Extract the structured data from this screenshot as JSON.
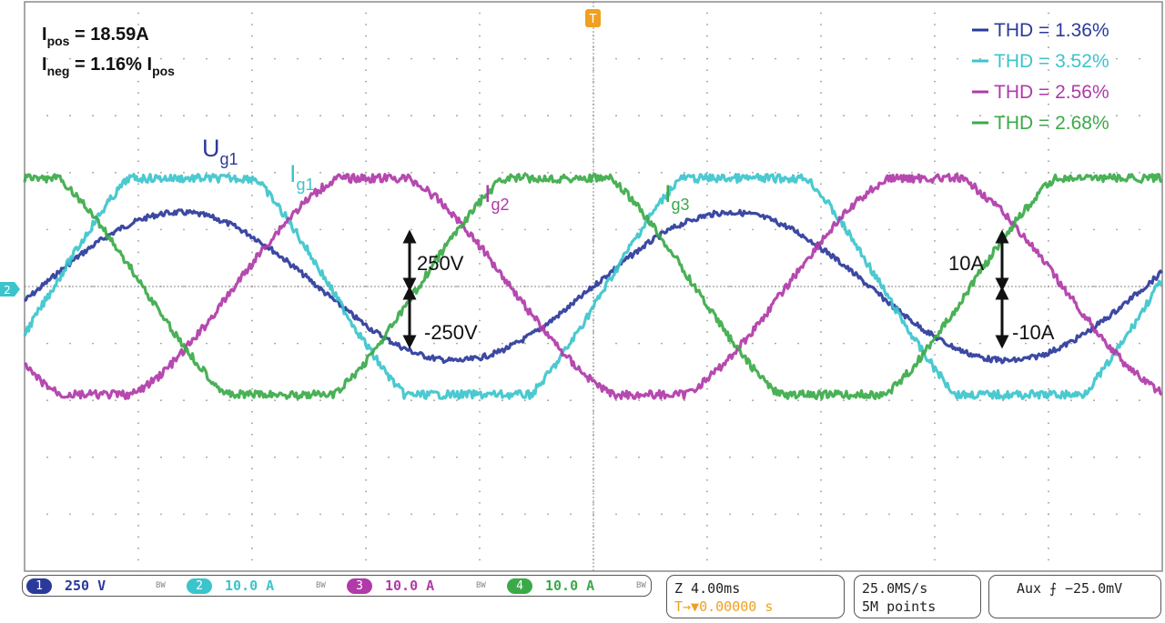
{
  "annotations": {
    "ipos_main": "I",
    "ipos_sub": "pos",
    "ipos_val": " = 18.59A",
    "ineg_main": "I",
    "ineg_sub": "neg",
    "ineg_val": " = 1.16% I",
    "ineg_sub2": "pos",
    "ug1_main": "U",
    "ug1_sub": "g1",
    "ig1_main": "I",
    "ig1_sub": "g1",
    "ig2_main": "I",
    "ig2_sub": "g2",
    "ig3_main": "I",
    "ig3_sub": "g3",
    "v_pos": "250V",
    "v_neg": "-250V",
    "a_pos": "10A",
    "a_neg": "-10A"
  },
  "legend": [
    {
      "label": "THD = 1.36%",
      "color": "#2b3a9a"
    },
    {
      "label": "THD = 3.52%",
      "color": "#3cc4cc"
    },
    {
      "label": "THD = 2.56%",
      "color": "#b03aa8"
    },
    {
      "label": "THD = 2.68%",
      "color": "#3aaa48"
    }
  ],
  "trigger_marker": "T",
  "ground_marker": "2",
  "status": {
    "channels": [
      {
        "num": "1",
        "value": "250 V",
        "color": "#2b3a9a",
        "bw": "BW"
      },
      {
        "num": "2",
        "value": "10.0 A",
        "color": "#3cc4cc",
        "bw": "BW"
      },
      {
        "num": "3",
        "value": "10.0 A",
        "color": "#b03aa8",
        "bw": "BW"
      },
      {
        "num": "4",
        "value": "10.0 A",
        "color": "#3aaa48",
        "bw": "BW"
      }
    ],
    "timebase": "Z 4.00ms",
    "trigger_pos": "0.00000 s",
    "trigger_pos_icon": "T→▼",
    "sample_rate": "25.0MS/s",
    "record_length": "5M points",
    "aux_trigger": "Aux ⨍ −25.0mV"
  },
  "chart_data": {
    "type": "line",
    "grid": true,
    "x_divisions": 10,
    "y_divisions": 10,
    "period_divisions": 4.85,
    "series": [
      {
        "name": "U_g1",
        "color": "#2b3a9a",
        "amplitude_div": 1.3,
        "phase_deg": 0,
        "flat_top": 0.0
      },
      {
        "name": "I_g1",
        "color": "#3cc4cc",
        "amplitude_div": 1.9,
        "phase_deg": -8,
        "flat_top": 0.25
      },
      {
        "name": "I_g2",
        "color": "#b03aa8",
        "amplitude_div": 1.9,
        "phase_deg": -126,
        "flat_top": 0.08
      },
      {
        "name": "I_g3",
        "color": "#3aaa48",
        "amplitude_div": 1.9,
        "phase_deg": 114,
        "flat_top": 0.18
      }
    ]
  }
}
